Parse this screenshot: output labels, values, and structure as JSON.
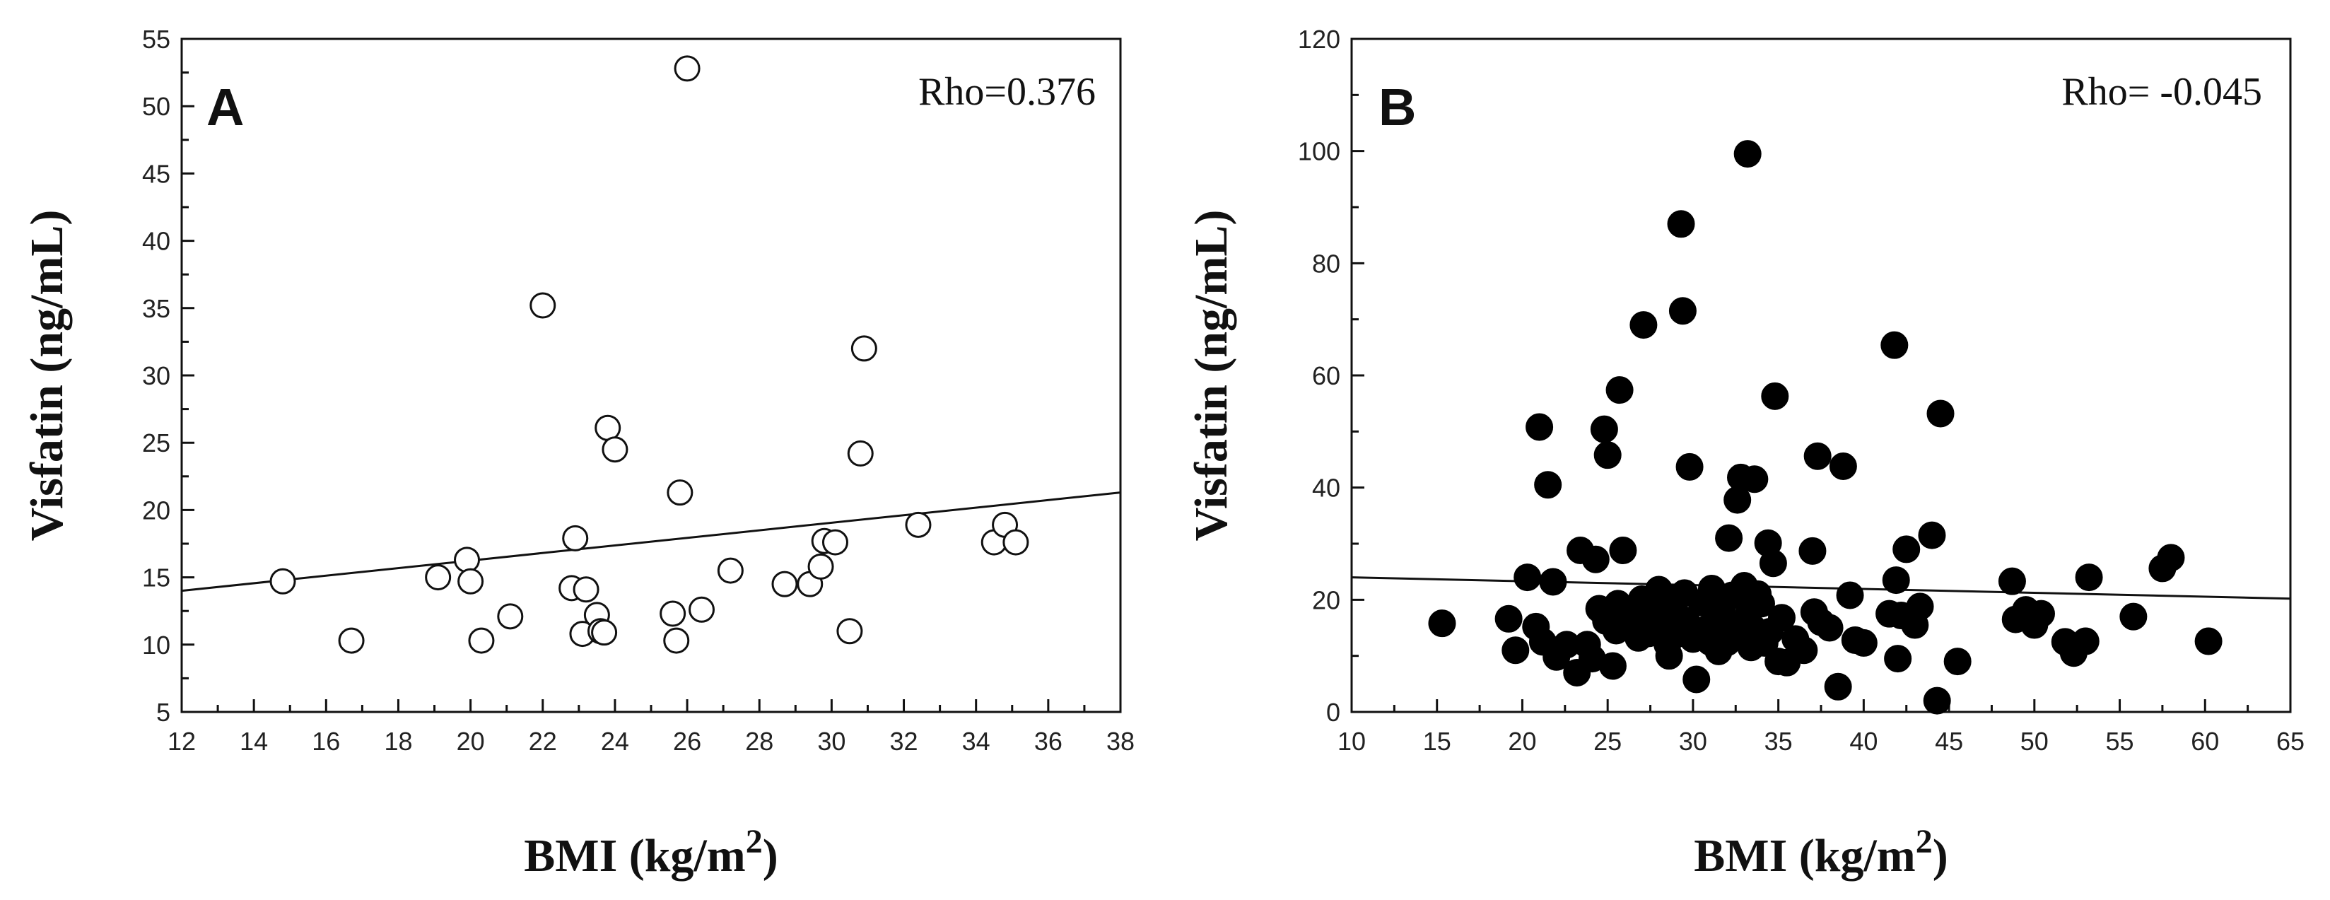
{
  "chart_data": [
    {
      "type": "scatter",
      "panel_label": "A",
      "title": "",
      "annotation": "Rho=0.376",
      "xlabel": "BMI (kg/m",
      "xlabel_sup": "2",
      "xlabel_close": ")",
      "ylabel": "Visfatin (ng/mL)",
      "xlim": [
        12,
        38
      ],
      "ylim": [
        5,
        55
      ],
      "x_ticks": [
        12,
        14,
        16,
        18,
        20,
        22,
        24,
        26,
        28,
        30,
        32,
        34,
        36,
        38
      ],
      "y_ticks": [
        5,
        10,
        15,
        20,
        25,
        30,
        35,
        40,
        45,
        50,
        55
      ],
      "x_tick_labels": [
        "12",
        "14",
        "16",
        "18",
        "20",
        "22",
        "24",
        "26",
        "28",
        "30",
        "32",
        "34",
        "36",
        "38"
      ],
      "y_tick_labels": [
        "5",
        "10",
        "15",
        "20",
        "25",
        "30",
        "35",
        "40",
        "45",
        "50",
        "55"
      ],
      "marker": "open-circle",
      "series": [
        {
          "name": "subjects",
          "x": [
            14.8,
            16.7,
            19.1,
            19.9,
            20.0,
            20.3,
            21.1,
            22.0,
            22.8,
            22.9,
            23.1,
            23.2,
            23.5,
            23.6,
            23.7,
            23.8,
            24.0,
            25.6,
            25.7,
            25.8,
            26.0,
            26.4,
            27.2,
            28.7,
            29.4,
            29.7,
            29.8,
            30.1,
            30.5,
            30.8,
            30.9,
            32.4,
            34.5,
            34.8,
            35.1
          ],
          "y": [
            14.7,
            10.3,
            15.0,
            16.3,
            14.7,
            10.3,
            12.1,
            35.2,
            14.2,
            17.9,
            10.8,
            14.1,
            12.2,
            11.0,
            10.9,
            26.1,
            24.5,
            12.3,
            10.3,
            21.3,
            52.8,
            12.6,
            15.5,
            14.5,
            14.5,
            15.8,
            17.7,
            17.6,
            11.0,
            24.2,
            32.0,
            18.9,
            17.6,
            18.9,
            17.6
          ]
        }
      ],
      "fit_line": {
        "x": [
          12,
          38
        ],
        "y": [
          14.0,
          21.3
        ]
      }
    },
    {
      "type": "scatter",
      "panel_label": "B",
      "title": "",
      "annotation": "Rho= -0.045",
      "xlabel": "BMI (kg/m",
      "xlabel_sup": "2",
      "xlabel_close": ")",
      "ylabel": "Visfatin (ng/mL)",
      "xlim": [
        10,
        65
      ],
      "ylim": [
        0,
        120
      ],
      "x_ticks": [
        10,
        15,
        20,
        25,
        30,
        35,
        40,
        45,
        50,
        55,
        60,
        65
      ],
      "y_ticks": [
        0,
        20,
        40,
        60,
        80,
        100,
        120
      ],
      "x_tick_labels": [
        "10",
        "15",
        "20",
        "25",
        "30",
        "35",
        "40",
        "45",
        "50",
        "55",
        "60",
        "65"
      ],
      "y_tick_labels": [
        "0",
        "20",
        "40",
        "60",
        "80",
        "100",
        "120"
      ],
      "marker": "filled-circle",
      "series": [
        {
          "name": "subjects",
          "x": [
            15.3,
            19.2,
            19.6,
            20.3,
            20.8,
            21.0,
            21.2,
            21.5,
            21.8,
            22.0,
            22.6,
            23.2,
            23.4,
            23.8,
            24.1,
            24.3,
            24.5,
            24.8,
            24.9,
            25.0,
            25.3,
            25.5,
            25.6,
            25.7,
            25.9,
            26.2,
            26.5,
            26.8,
            27.0,
            27.1,
            27.2,
            27.4,
            27.6,
            27.8,
            28.0,
            28.2,
            28.4,
            28.5,
            28.6,
            28.8,
            29.0,
            29.2,
            29.3,
            29.4,
            29.5,
            29.6,
            29.8,
            30.0,
            30.2,
            30.5,
            30.8,
            31.0,
            31.1,
            31.3,
            31.5,
            31.7,
            32.0,
            32.1,
            32.3,
            32.5,
            32.6,
            32.8,
            33.0,
            33.1,
            33.2,
            33.3,
            33.4,
            33.5,
            33.6,
            33.8,
            34.0,
            34.2,
            34.4,
            34.5,
            34.7,
            34.8,
            35.0,
            35.2,
            35.5,
            36.0,
            36.5,
            37.0,
            37.1,
            37.3,
            37.5,
            38.0,
            38.5,
            38.8,
            39.2,
            39.5,
            40.0,
            41.5,
            41.8,
            41.9,
            42.0,
            42.2,
            42.5,
            43.0,
            43.3,
            44.0,
            44.3,
            44.5,
            45.5,
            48.7,
            48.9,
            49.5,
            50.0,
            50.4,
            51.8,
            52.3,
            53.0,
            53.2,
            55.8,
            57.5,
            58.0,
            60.2
          ],
          "y": [
            15.8,
            16.6,
            11.0,
            24.0,
            15.2,
            50.8,
            12.5,
            40.5,
            23.2,
            9.8,
            12.0,
            7.0,
            28.8,
            12.0,
            9.5,
            27.2,
            18.4,
            50.4,
            16.2,
            45.8,
            8.2,
            14.5,
            19.3,
            57.4,
            28.8,
            15.2,
            18.5,
            13.2,
            20.1,
            69.0,
            16.5,
            14.0,
            17.2,
            18.2,
            21.8,
            19.5,
            15.0,
            12.0,
            10.0,
            20.3,
            17.5,
            14.0,
            87.0,
            71.5,
            21.2,
            16.3,
            43.7,
            13.0,
            5.8,
            19.5,
            14.8,
            12.5,
            22.0,
            16.2,
            10.8,
            18.0,
            12.4,
            31.0,
            20.8,
            15.5,
            37.8,
            41.8,
            22.5,
            13.5,
            99.5,
            18.1,
            11.5,
            15.0,
            41.5,
            21.0,
            19.3,
            12.3,
            30.1,
            14.3,
            26.5,
            56.3,
            9.0,
            16.8,
            8.8,
            13.0,
            11.0,
            28.7,
            17.8,
            45.6,
            16.0,
            15.0,
            4.5,
            43.8,
            20.8,
            12.8,
            12.3,
            17.5,
            65.4,
            23.5,
            9.5,
            17.2,
            29.0,
            15.5,
            18.8,
            31.5,
            2.0,
            53.2,
            9.0,
            23.3,
            16.5,
            18.2,
            15.5,
            17.5,
            12.5,
            10.5,
            12.6,
            24.0,
            17.0,
            25.6,
            27.5,
            12.6
          ]
        }
      ],
      "fit_line": {
        "x": [
          10,
          65
        ],
        "y": [
          24.0,
          20.2
        ]
      }
    }
  ]
}
